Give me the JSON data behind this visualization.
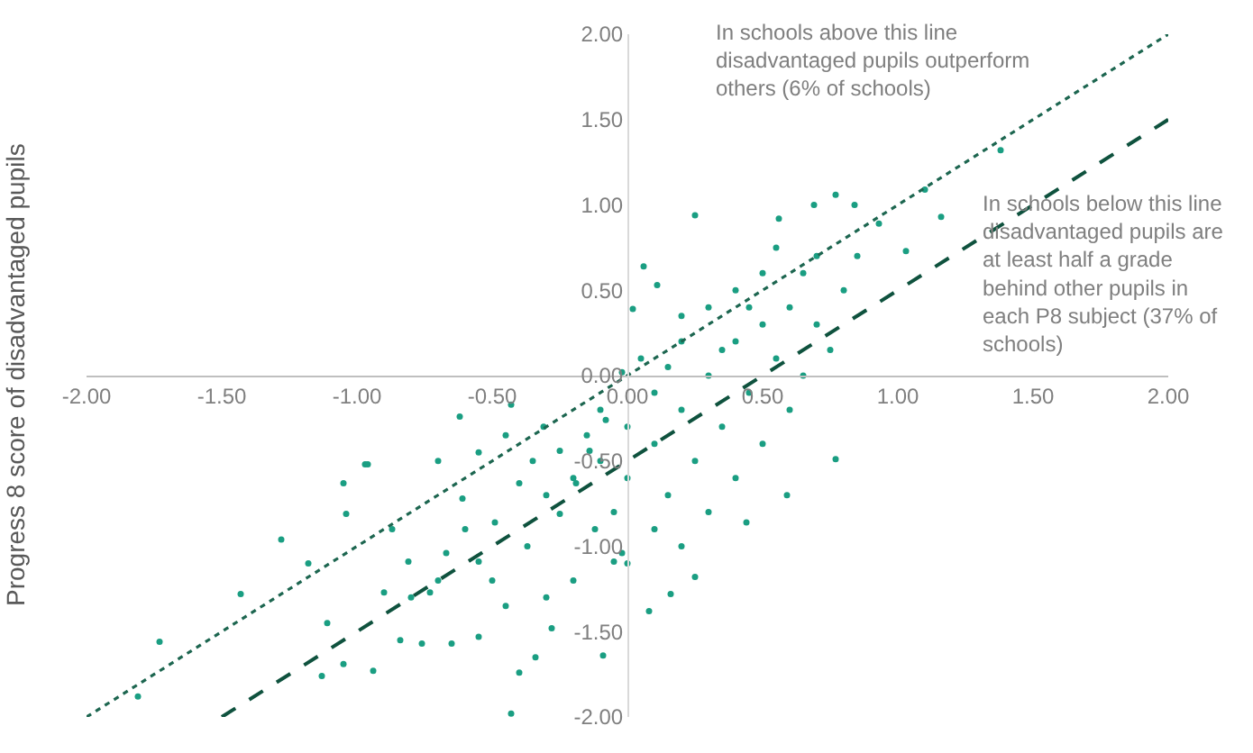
{
  "chart_data": {
    "type": "scatter",
    "ylabel": "Progress 8 score of disadvantaged pupils",
    "xlim": [
      -2,
      2
    ],
    "ylim": [
      -2,
      2
    ],
    "xticks": [
      {
        "value": -2,
        "label": "-2.00"
      },
      {
        "value": -1.5,
        "label": "-1.50"
      },
      {
        "value": -1,
        "label": "-1.00"
      },
      {
        "value": -0.5,
        "label": "-0.50"
      },
      {
        "value": 0,
        "label": "0.00"
      },
      {
        "value": 0.5,
        "label": "0.50"
      },
      {
        "value": 1,
        "label": "1.00"
      },
      {
        "value": 1.5,
        "label": "1.50"
      },
      {
        "value": 2,
        "label": "2.00"
      }
    ],
    "yticks": [
      {
        "value": -2,
        "label": "-2.00"
      },
      {
        "value": -1.5,
        "label": "-1.50"
      },
      {
        "value": -1,
        "label": "-1.00"
      },
      {
        "value": -0.5,
        "label": "-0.50"
      },
      {
        "value": 0,
        "label": "0.00"
      },
      {
        "value": 0.5,
        "label": "0.50"
      },
      {
        "value": 1,
        "label": "1.00"
      },
      {
        "value": 1.5,
        "label": "1.50"
      },
      {
        "value": 2,
        "label": "2.00"
      }
    ],
    "series": [
      {
        "marker": "circle",
        "color": "#1a9e82",
        "x": [
          -1.73,
          -1.81,
          -1.43,
          -1.28,
          -1.18,
          -1.11,
          -1.05,
          -0.97,
          -0.96,
          -1.04,
          -1.13,
          -1.05,
          -0.94,
          -0.84,
          -0.76,
          -0.65,
          -0.55,
          -0.43,
          -0.4,
          -0.34,
          -0.28,
          -0.09,
          -0.62,
          -0.7,
          -0.87,
          -0.81,
          -0.9,
          -0.73,
          -0.67,
          -0.55,
          -0.49,
          -0.61,
          -0.4,
          -0.43,
          -0.31,
          -0.25,
          -0.37,
          -0.25,
          -0.19,
          -0.14,
          -0.08,
          -0.02,
          0.02,
          0.06,
          0.11,
          0.25,
          0.56,
          0.69,
          0.77,
          0.84,
          0.93,
          1.03,
          1.1,
          1.16,
          1.38,
          0.77,
          0.59,
          0.44,
          0.25,
          0.16,
          0.08,
          -0.05,
          -0.12,
          -0.02,
          0.0,
          0.1,
          0.2,
          0.3,
          0.4,
          0.5,
          0.2,
          0.1,
          -0.1,
          0.0,
          -0.2,
          0.15,
          0.25,
          0.35,
          0.45,
          0.55,
          0.6,
          0.3,
          0.4,
          0.5,
          0.65,
          0.7,
          0.75,
          0.6,
          0.5,
          0.3,
          0.1,
          -0.05,
          -0.15,
          -0.3,
          -0.35,
          0.05,
          0.2,
          0.35,
          0.45,
          0.55,
          0.7,
          0.8,
          0.85,
          0.65,
          0.4,
          0.2,
          0.0,
          -0.1,
          0.15,
          -0.6,
          -0.5,
          -0.7,
          -0.8,
          -0.45,
          -0.3,
          -0.2,
          -0.55,
          -0.45
        ],
        "values": [
          -1.56,
          -1.88,
          -1.28,
          -0.96,
          -1.1,
          -1.45,
          -0.63,
          -0.52,
          -0.52,
          -0.81,
          -1.76,
          -1.69,
          -1.73,
          -1.55,
          -1.57,
          -1.57,
          -1.53,
          -1.98,
          -1.74,
          -1.65,
          -1.48,
          -1.64,
          -0.24,
          -0.5,
          -0.9,
          -1.09,
          -1.27,
          -1.27,
          -1.04,
          -1.09,
          -0.86,
          -0.72,
          -0.63,
          -0.17,
          -0.3,
          -0.44,
          -1.0,
          -0.81,
          -0.63,
          -0.44,
          -0.26,
          0.02,
          0.39,
          0.64,
          0.53,
          0.94,
          0.92,
          1.0,
          1.06,
          1.0,
          0.89,
          0.73,
          1.09,
          0.93,
          1.32,
          -0.49,
          -0.7,
          -0.86,
          -1.18,
          -1.28,
          -1.38,
          -1.09,
          -0.9,
          -1.04,
          -0.3,
          -0.4,
          -0.2,
          0.0,
          0.2,
          0.3,
          0.2,
          -0.1,
          -0.5,
          -0.6,
          -0.6,
          -0.7,
          -0.5,
          -0.3,
          -0.1,
          0.1,
          0.4,
          0.4,
          0.5,
          0.6,
          0.6,
          0.3,
          0.15,
          -0.2,
          -0.4,
          -0.8,
          -0.9,
          -0.8,
          -0.35,
          -0.7,
          -0.5,
          0.1,
          0.35,
          0.15,
          0.4,
          0.75,
          0.7,
          0.5,
          0.7,
          0.0,
          -0.6,
          -1.0,
          -1.1,
          -0.2,
          0.05,
          -0.9,
          -1.2,
          -1.2,
          -1.3,
          -1.35,
          -1.3,
          -1.2,
          -0.45,
          -0.35
        ]
      },
      {
        "type": "line",
        "color": "#1d6650",
        "line_style": "dotted",
        "marker": "none",
        "x": [
          -2,
          2
        ],
        "values": [
          -2,
          2
        ]
      },
      {
        "type": "line",
        "color": "#0f523e",
        "line_style": "dashed",
        "marker": "none",
        "x": [
          -1.5,
          2
        ],
        "values": [
          -2,
          1.5
        ]
      }
    ],
    "annotations": [
      "In schools above this line\ndisadvantaged pupils outperform\nothers (6% of schools)",
      "In schools below this line\ndisadvantaged pupils are\nat least half a grade\nbehind other pupils in\neach P8 subject (37% of\nschools)"
    ]
  }
}
